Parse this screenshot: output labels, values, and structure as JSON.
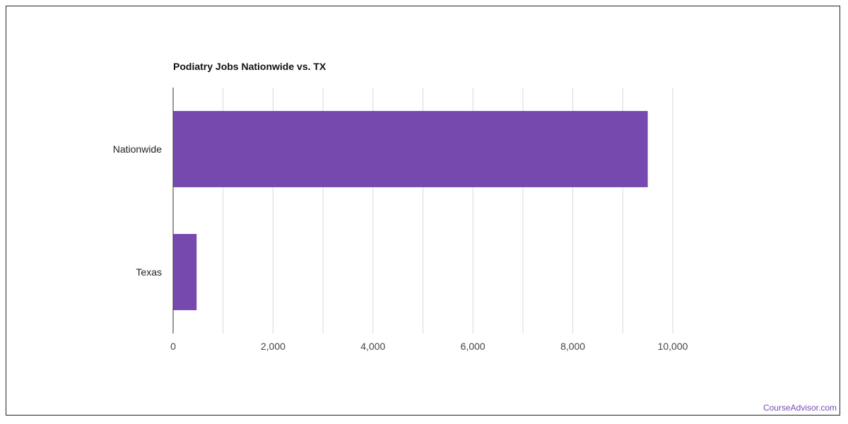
{
  "chart_data": {
    "type": "bar",
    "orientation": "horizontal",
    "title": "Podiatry Jobs Nationwide vs. TX",
    "categories": [
      "Nationwide",
      "Texas"
    ],
    "values": [
      9500,
      470
    ],
    "xlim": [
      0,
      10000
    ],
    "xticks": [
      0,
      2000,
      4000,
      6000,
      8000,
      10000
    ],
    "xtick_labels": [
      "0",
      "2,000",
      "4,000",
      "6,000",
      "8,000",
      "10,000"
    ],
    "grid": true,
    "bar_color": "#7649ae",
    "xlabel": "",
    "ylabel": ""
  },
  "watermark": "CourseAdvisor.com"
}
